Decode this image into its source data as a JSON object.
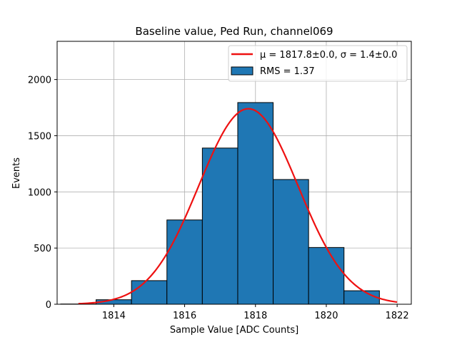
{
  "chart_data": {
    "type": "bar",
    "title": "Baseline value, Ped Run, channel069",
    "xlabel": "Sample Value [ADC Counts]",
    "ylabel": "Events",
    "xlim": [
      12.4,
      22.4
    ],
    "ylim": [
      0,
      2340
    ],
    "x_tick_labels": [
      "1814",
      "1816",
      "1818",
      "1820",
      "1822"
    ],
    "x_tick_values": [
      14,
      16,
      18,
      20,
      22
    ],
    "x_offset": 1800,
    "y_ticks": [
      0,
      500,
      1000,
      1500,
      2000
    ],
    "y_tick_labels": [
      "0",
      "500",
      "1000",
      "1500",
      "2000"
    ],
    "grid": true,
    "legend_position": "top-right",
    "histogram": {
      "name": "RMS = 1.37",
      "color": "#1f77b4",
      "edge_color": "#000000",
      "bins": [
        {
          "x0": 12.5,
          "x1": 13.5,
          "count": 2
        },
        {
          "x0": 13.5,
          "x1": 14.5,
          "count": 40
        },
        {
          "x0": 14.5,
          "x1": 15.5,
          "count": 210
        },
        {
          "x0": 15.5,
          "x1": 16.5,
          "count": 750
        },
        {
          "x0": 16.5,
          "x1": 17.5,
          "count": 1390
        },
        {
          "x0": 17.5,
          "x1": 18.5,
          "count": 1795
        },
        {
          "x0": 18.5,
          "x1": 19.5,
          "count": 1110
        },
        {
          "x0": 19.5,
          "x1": 20.5,
          "count": 505
        },
        {
          "x0": 20.5,
          "x1": 21.5,
          "count": 120
        }
      ]
    },
    "fit": {
      "name": "μ = 1817.8±0.0, σ = 1.4±0.0",
      "color": "#ee1111",
      "amplitude": 1740,
      "mu": 17.8,
      "sigma": 1.4,
      "x_range": [
        13.0,
        22.0
      ]
    }
  }
}
